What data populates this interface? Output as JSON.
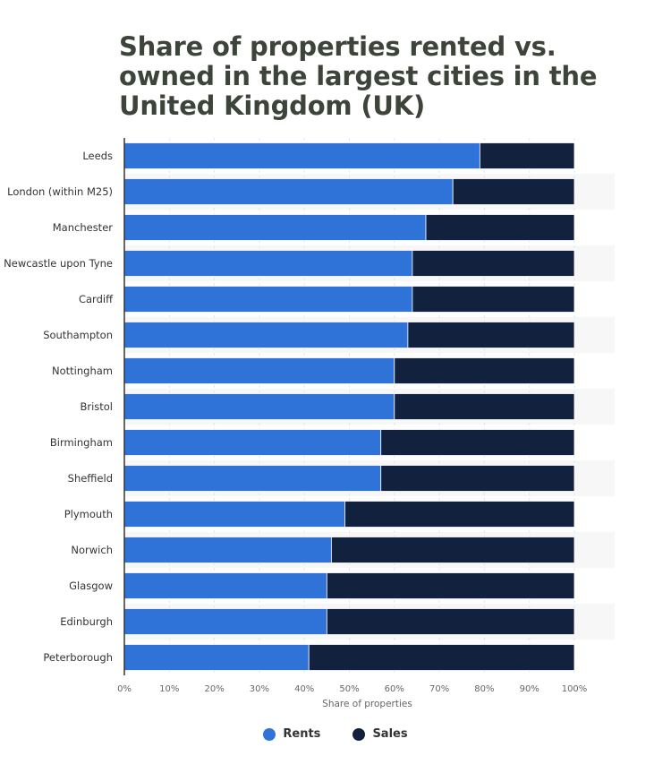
{
  "chart_data": {
    "type": "bar",
    "orientation": "horizontal",
    "stacked": true,
    "title": "Share of properties rented vs. owned in the largest cities in the United Kingdom (UK)",
    "xlabel": "Share of properties",
    "xlim": [
      0,
      100
    ],
    "x_ticks": [
      "0%",
      "10%",
      "20%",
      "30%",
      "40%",
      "50%",
      "60%",
      "70%",
      "80%",
      "90%",
      "100%"
    ],
    "categories": [
      "Leeds",
      "London (within M25)",
      "Manchester",
      "Newcastle upon Tyne",
      "Cardiff",
      "Southampton",
      "Nottingham",
      "Bristol",
      "Birmingham",
      "Sheffield",
      "Plymouth",
      "Norwich",
      "Glasgow",
      "Edinburgh",
      "Peterborough"
    ],
    "series": [
      {
        "name": "Rents",
        "color": "#2f73d9",
        "values": [
          79,
          73,
          67,
          64,
          64,
          63,
          60,
          60,
          57,
          57,
          49,
          46,
          45,
          45,
          41
        ]
      },
      {
        "name": "Sales",
        "color": "#12213d",
        "values": [
          21,
          27,
          33,
          36,
          36,
          37,
          40,
          40,
          43,
          43,
          51,
          54,
          55,
          55,
          59
        ]
      }
    ],
    "grid": true,
    "legend_position": "bottom"
  }
}
